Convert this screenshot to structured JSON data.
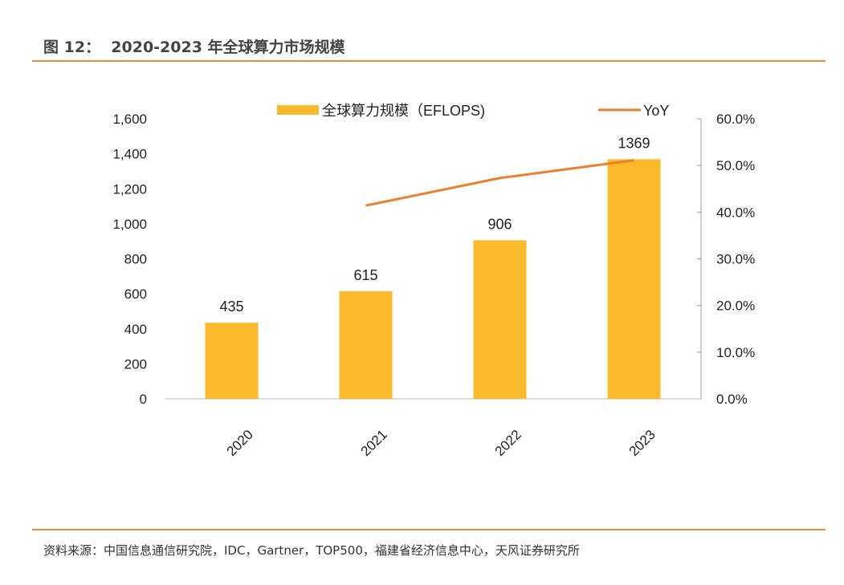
{
  "header": {
    "title": "图 12：  2020-2023 年全球算力市场规模"
  },
  "footer": {
    "source": "资料来源：中国信息通信研究院，IDC，Gartner，TOP500，福建省经济信息中心，天风证券研究所"
  },
  "colors": {
    "bar": "#FBBA2C",
    "line": "#EE7E2B",
    "rule": "#E8883A"
  },
  "chart_data": {
    "type": "bar+line",
    "categories": [
      "2020",
      "2021",
      "2022",
      "2023"
    ],
    "series": [
      {
        "name": "全球算力规模（EFLOPS)",
        "type": "bar",
        "axis": "left",
        "values": [
          435,
          615,
          906,
          1369
        ],
        "labels": [
          "435",
          "615",
          "906",
          "1369"
        ]
      },
      {
        "name": "YoY",
        "type": "line",
        "axis": "right",
        "values": [
          null,
          41.4,
          47.3,
          51.1
        ]
      }
    ],
    "y_left": {
      "range": [
        0,
        1600
      ],
      "ticks": [
        "0",
        "200",
        "400",
        "600",
        "800",
        "1,000",
        "1,200",
        "1,400",
        "1,600"
      ]
    },
    "y_right": {
      "range": [
        0,
        60
      ],
      "ticks": [
        "0.0%",
        "10.0%",
        "20.0%",
        "30.0%",
        "40.0%",
        "50.0%",
        "60.0%"
      ]
    },
    "grid": false,
    "legend": "top"
  }
}
